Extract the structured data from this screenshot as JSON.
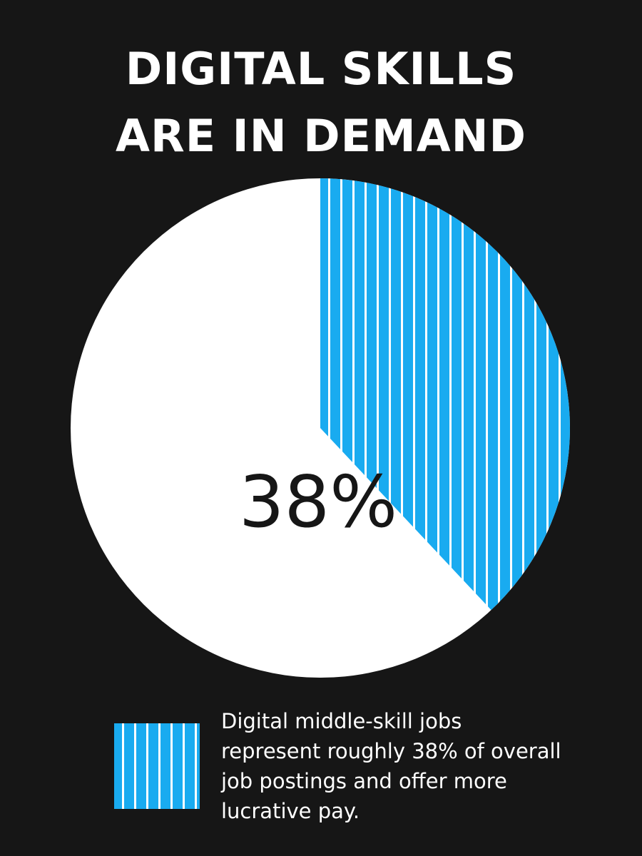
{
  "title_line1": "DIGITAL SKILLS",
  "title_line2": "ARE IN DEMAND",
  "center_label": "38%",
  "legend_text": "Digital middle-skill jobs represent roughly 38% of overall job postings and offer more lucrative pay.",
  "colors": {
    "background": "#161616",
    "highlight": "#19abf0",
    "stripe": "#ffffff",
    "rest": "#ffffff"
  },
  "chart_data": {
    "type": "pie",
    "slices": [
      {
        "name": "Digital middle-skill jobs",
        "value": 38
      },
      {
        "name": "",
        "value": 62
      }
    ],
    "start": "12 o'clock",
    "direction": "clockwise",
    "highlight_pattern": "vertical-stripes"
  }
}
